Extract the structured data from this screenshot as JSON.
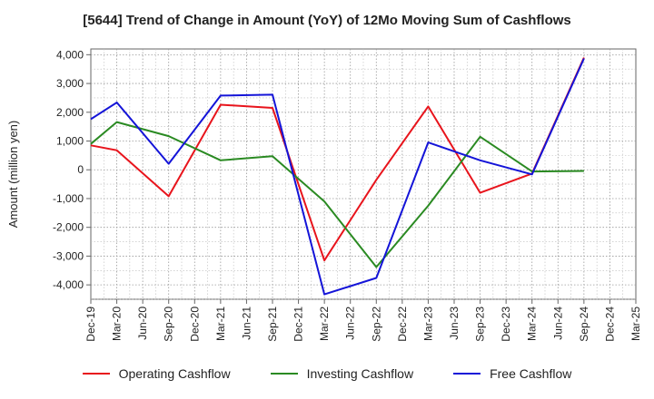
{
  "chart_data": {
    "type": "line",
    "title": "[5644]  Trend of Change in Amount (YoY) of 12Mo Moving Sum of Cashflows",
    "xlabel": "",
    "ylabel": "Amount (million yen)",
    "ylim": [
      -4500,
      4200
    ],
    "yticks": [
      4000,
      3000,
      2000,
      1000,
      0,
      -1000,
      -2000,
      -3000,
      -4000
    ],
    "ytick_labels": [
      "4,000",
      "3,000",
      "2,000",
      "1,000",
      "0",
      "-1,000",
      "-2,000",
      "-3,000",
      "-4,000"
    ],
    "categories": [
      "Dec-19",
      "Mar-20",
      "Jun-20",
      "Sep-20",
      "Dec-20",
      "Mar-21",
      "Jun-21",
      "Sep-21",
      "Dec-21",
      "Mar-22",
      "Jun-22",
      "Sep-22",
      "Dec-22",
      "Mar-23",
      "Jun-23",
      "Sep-23",
      "Dec-23",
      "Mar-24",
      "Jun-24",
      "Sep-24",
      "Dec-24",
      "Mar-25"
    ],
    "grid": true,
    "legend_position": "bottom",
    "series": [
      {
        "name": "Operating Cashflow",
        "color": "#e8141c",
        "values": [
          850,
          680,
          null,
          -920,
          null,
          2260,
          null,
          2150,
          null,
          -3150,
          null,
          -350,
          null,
          2200,
          null,
          -800,
          null,
          -130,
          null,
          3900,
          null,
          null
        ]
      },
      {
        "name": "Investing Cashflow",
        "color": "#2a8a22",
        "values": [
          900,
          1660,
          null,
          1170,
          null,
          330,
          null,
          470,
          null,
          -1100,
          null,
          -3380,
          null,
          -1250,
          null,
          1150,
          null,
          -60,
          null,
          -40,
          null,
          null
        ]
      },
      {
        "name": "Free Cashflow",
        "color": "#1414d8",
        "values": [
          1760,
          2340,
          null,
          210,
          null,
          2580,
          null,
          2610,
          null,
          -4330,
          null,
          -3760,
          null,
          950,
          null,
          330,
          null,
          -160,
          null,
          3870,
          null,
          null
        ]
      }
    ]
  }
}
